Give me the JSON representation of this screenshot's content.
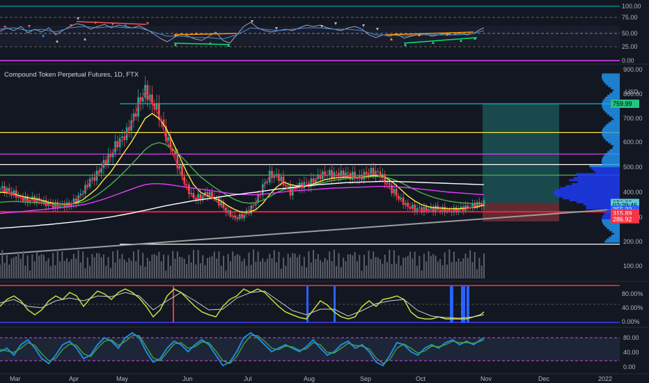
{
  "chart_data": {
    "type": "candlestick",
    "title": "Compound Token Perpetual Futures, 1D, FTX",
    "currency": "USD",
    "x_ticks": [
      "Mar",
      "Apr",
      "May",
      "Jun",
      "Jul",
      "Aug",
      "Sep",
      "Oct",
      "Nov",
      "Dec",
      "2022"
    ],
    "price_ticks": [
      900,
      800,
      700,
      600,
      500,
      400,
      300,
      200
    ],
    "volume_tick": 100,
    "top_osc_ticks": [
      100,
      75,
      50,
      25,
      0
    ],
    "rsi_ticks": [
      "80.00%",
      "40.00%",
      "0.00%"
    ],
    "bottom_osc_ticks": [
      80,
      40,
      0
    ],
    "price_tags": [
      {
        "label": "759.99",
        "value": 759.99,
        "color": "#26c281"
      },
      {
        "label": "356.88",
        "value": 356.88,
        "color": "#5ec8d6"
      },
      {
        "label": "02:29:46",
        "value": 347,
        "color": "#5ec8d6"
      },
      {
        "label": "355.33",
        "value": 330,
        "color": "#2962ff"
      },
      {
        "label": "315.89",
        "value": 315.89,
        "color": "#f23645"
      },
      {
        "label": "286.92",
        "value": 292,
        "color": "#f23645"
      }
    ],
    "horizontal_levels": [
      {
        "value": 760,
        "color": "#00bcd4"
      },
      {
        "value": 640,
        "color": "#ffeb3b"
      },
      {
        "value": 552,
        "color": "#e040fb"
      },
      {
        "value": 510,
        "color": "#ffffff"
      },
      {
        "value": 468,
        "color": "#4caf50"
      },
      {
        "value": 322,
        "color": "#ff1744"
      },
      {
        "value": 190,
        "color": "#ffffff"
      }
    ],
    "series": [
      {
        "name": "close",
        "values": [
          415,
          405,
          395,
          380,
          370,
          372,
          360,
          352,
          348,
          352,
          350,
          368,
          400,
          445,
          470,
          520,
          550,
          600,
          620,
          680,
          760,
          820,
          770,
          720,
          620,
          560,
          490,
          420,
          380,
          380,
          395,
          375,
          350,
          318,
          300,
          305,
          325,
          360,
          420,
          470,
          470,
          440,
          400,
          420,
          430,
          440,
          465,
          475,
          470,
          470,
          470,
          465,
          460,
          480,
          480,
          470,
          430,
          400,
          370,
          345,
          335,
          330,
          330,
          335,
          332,
          328,
          330,
          335,
          340,
          350,
          356.88
        ]
      },
      {
        "name": "ema-yellow",
        "values": [
          400,
          398,
          393,
          385,
          378,
          374,
          368,
          360,
          355,
          353,
          352,
          358,
          370,
          392,
          415,
          450,
          480,
          520,
          560,
          600,
          650,
          700,
          720,
          700,
          660,
          600,
          540,
          480,
          430,
          400,
          385,
          375,
          365,
          345,
          330,
          320,
          320,
          330,
          355,
          390,
          420,
          440,
          430,
          425,
          425,
          430,
          440,
          450,
          455,
          458,
          460,
          460,
          458,
          462,
          466,
          466,
          455,
          435,
          410,
          385,
          365,
          350,
          342,
          338,
          336,
          334,
          334,
          335,
          337,
          342,
          348
        ]
      },
      {
        "name": "ema-green",
        "values": [
          360,
          362,
          363,
          362,
          360,
          358,
          357,
          355,
          354,
          353,
          353,
          355,
          360,
          372,
          388,
          408,
          430,
          455,
          482,
          510,
          540,
          570,
          590,
          598,
          590,
          570,
          548,
          520,
          490,
          462,
          440,
          420,
          402,
          385,
          370,
          360,
          356,
          358,
          368,
          382,
          398,
          410,
          416,
          420,
          424,
          428,
          434,
          440,
          446,
          450,
          454,
          456,
          458,
          460,
          462,
          462,
          458,
          450,
          438,
          424,
          410,
          397,
          386,
          377,
          370,
          364,
          360,
          357,
          355,
          354,
          354
        ]
      },
      {
        "name": "ema-magenta",
        "values": [
          315,
          318,
          320,
          322,
          325,
          328,
          330,
          333,
          336,
          339,
          342,
          346,
          350,
          356,
          364,
          372,
          382,
          392,
          402,
          412,
          422,
          430,
          434,
          434,
          432,
          428,
          424,
          420,
          416,
          412,
          408,
          404,
          400,
          396,
          393,
          391,
          390,
          390,
          392,
          395,
          398,
          401,
          404,
          406,
          408,
          410,
          412,
          414,
          416,
          417,
          418,
          419,
          420,
          421,
          422,
          423,
          423,
          422,
          420,
          418,
          415,
          412,
          409,
          406,
          403,
          400,
          398,
          396,
          394,
          392,
          390
        ]
      },
      {
        "name": "sma-white",
        "values": [
          255,
          257,
          259,
          261,
          263,
          265,
          268,
          270,
          273,
          276,
          279,
          282,
          285,
          289,
          293,
          297,
          301,
          306,
          311,
          316,
          322,
          328,
          334,
          340,
          346,
          351,
          356,
          361,
          366,
          370,
          374,
          378,
          382,
          386,
          390,
          393,
          397,
          400,
          404,
          408,
          412,
          415,
          418,
          421,
          424,
          427,
          430,
          432,
          434,
          436,
          438,
          439,
          440,
          441,
          442,
          443,
          443,
          443,
          442,
          441,
          440,
          439,
          438,
          437,
          436,
          435,
          434,
          433,
          432,
          431,
          430
        ]
      }
    ]
  }
}
